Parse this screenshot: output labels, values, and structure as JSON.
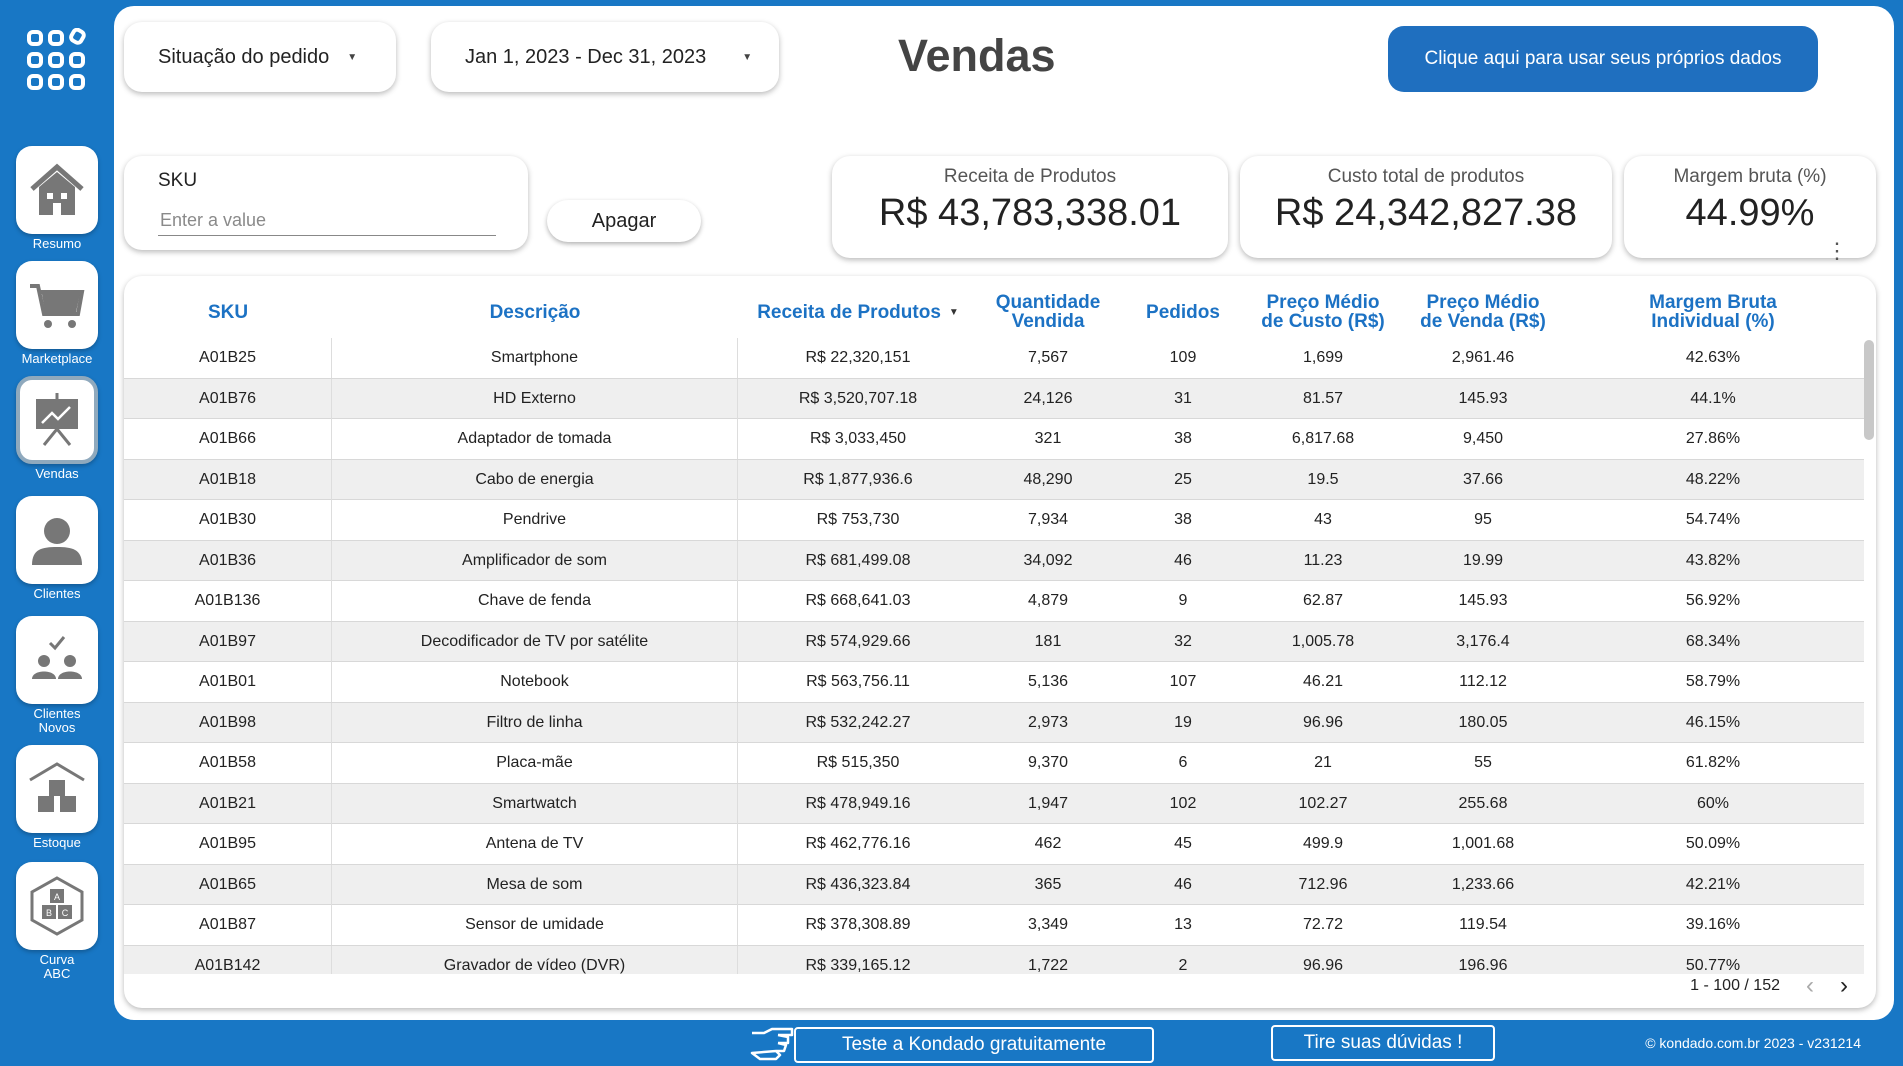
{
  "sidebar": {
    "logo_icon": "app-grid-icon",
    "items": [
      {
        "label": "Resumo",
        "icon": "house-icon"
      },
      {
        "label": "Marketplace",
        "icon": "cart-icon"
      },
      {
        "label": "Vendas",
        "icon": "presentation-chart-icon",
        "active": true
      },
      {
        "label": "Clientes",
        "icon": "user-icon"
      },
      {
        "label": "Clientes Novos",
        "icon": "new-clients-icon"
      },
      {
        "label": "Estoque",
        "icon": "warehouse-boxes-icon"
      },
      {
        "label": "Curva ABC",
        "icon": "abc-curve-icon"
      }
    ]
  },
  "filters": {
    "order_status": "Situação do pedido",
    "date_range": "Jan 1, 2023 - Dec 31, 2023"
  },
  "page_title": "Vendas",
  "cta_label": "Clique aqui para usar seus próprios dados",
  "sku_filter": {
    "label": "SKU",
    "placeholder": "Enter a value",
    "clear_label": "Apagar"
  },
  "kpis": [
    {
      "label": "Receita de Produtos",
      "value": "R$ 43,783,338.01"
    },
    {
      "label": "Custo total de produtos",
      "value": "R$ 24,342,827.38"
    },
    {
      "label": "Margem bruta (%)",
      "value": "44.99%"
    }
  ],
  "table": {
    "columns": [
      "SKU",
      "Descrição",
      "Receita de Produtos",
      "Quantidade Vendida",
      "Pedidos",
      "Preço Médio de Custo (R$)",
      "Preço Médio de Venda (R$)",
      "Margem Bruta Individual (%)"
    ],
    "sorted_column": "Receita de Produtos",
    "rows": [
      [
        "A01B25",
        "Smartphone",
        "R$ 22,320,151",
        "7,567",
        "109",
        "1,699",
        "2,961.46",
        "42.63%"
      ],
      [
        "A01B76",
        "HD Externo",
        "R$ 3,520,707.18",
        "24,126",
        "31",
        "81.57",
        "145.93",
        "44.1%"
      ],
      [
        "A01B66",
        "Adaptador de tomada",
        "R$ 3,033,450",
        "321",
        "38",
        "6,817.68",
        "9,450",
        "27.86%"
      ],
      [
        "A01B18",
        "Cabo de energia",
        "R$ 1,877,936.6",
        "48,290",
        "25",
        "19.5",
        "37.66",
        "48.22%"
      ],
      [
        "A01B30",
        "Pendrive",
        "R$ 753,730",
        "7,934",
        "38",
        "43",
        "95",
        "54.74%"
      ],
      [
        "A01B36",
        "Amplificador de som",
        "R$ 681,499.08",
        "34,092",
        "46",
        "11.23",
        "19.99",
        "43.82%"
      ],
      [
        "A01B136",
        "Chave de fenda",
        "R$ 668,641.03",
        "4,879",
        "9",
        "62.87",
        "145.93",
        "56.92%"
      ],
      [
        "A01B97",
        "Decodificador de TV por satélite",
        "R$ 574,929.66",
        "181",
        "32",
        "1,005.78",
        "3,176.4",
        "68.34%"
      ],
      [
        "A01B01",
        "Notebook",
        "R$ 563,756.11",
        "5,136",
        "107",
        "46.21",
        "112.12",
        "58.79%"
      ],
      [
        "A01B98",
        "Filtro de linha",
        "R$ 532,242.27",
        "2,973",
        "19",
        "96.96",
        "180.05",
        "46.15%"
      ],
      [
        "A01B58",
        "Placa-mãe",
        "R$ 515,350",
        "9,370",
        "6",
        "21",
        "55",
        "61.82%"
      ],
      [
        "A01B21",
        "Smartwatch",
        "R$ 478,949.16",
        "1,947",
        "102",
        "102.27",
        "255.68",
        "60%"
      ],
      [
        "A01B95",
        "Antena de TV",
        "R$ 462,776.16",
        "462",
        "45",
        "499.9",
        "1,001.68",
        "50.09%"
      ],
      [
        "A01B65",
        "Mesa de som",
        "R$ 436,323.84",
        "365",
        "46",
        "712.96",
        "1,233.66",
        "42.21%"
      ],
      [
        "A01B87",
        "Sensor de umidade",
        "R$ 378,308.89",
        "3,349",
        "13",
        "72.72",
        "119.54",
        "39.16%"
      ],
      [
        "A01B142",
        "Gravador de vídeo (DVR)",
        "R$ 339,165.12",
        "1,722",
        "2",
        "96.96",
        "196.96",
        "50.77%"
      ]
    ],
    "pagination": "1 - 100 / 152"
  },
  "footer": {
    "trial_label": "Teste a Kondado gratuitamente",
    "help_label": "Tire suas dúvidas !",
    "copyright": "© kondado.com.br 2023 - v231214"
  },
  "colors": {
    "brand_blue": "#1877c5",
    "header_blue": "#1c72c4",
    "cta_blue": "#1f6fbf"
  }
}
